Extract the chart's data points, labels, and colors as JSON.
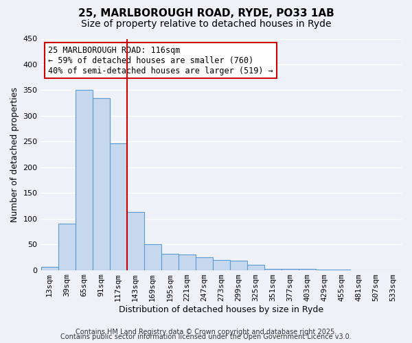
{
  "title1": "25, MARLBOROUGH ROAD, RYDE, PO33 1AB",
  "title2": "Size of property relative to detached houses in Ryde",
  "xlabel": "Distribution of detached houses by size in Ryde",
  "ylabel": "Number of detached properties",
  "bar_values": [
    6,
    90,
    350,
    335,
    247,
    113,
    50,
    32,
    30,
    25,
    20,
    18,
    10,
    2,
    2,
    2,
    1,
    1,
    0,
    0,
    0
  ],
  "categories": [
    "13sqm",
    "39sqm",
    "65sqm",
    "91sqm",
    "117sqm",
    "143sqm",
    "169sqm",
    "195sqm",
    "221sqm",
    "247sqm",
    "273sqm",
    "299sqm",
    "325sqm",
    "351sqm",
    "377sqm",
    "403sqm",
    "429sqm",
    "455sqm",
    "481sqm",
    "507sqm",
    "533sqm"
  ],
  "bar_color": "#c5d8ed",
  "bar_edge_color": "#5b9bd5",
  "ylim": [
    0,
    450
  ],
  "yticks": [
    0,
    50,
    100,
    150,
    200,
    250,
    300,
    350,
    400,
    450
  ],
  "vline_x": 4.5,
  "vline_color": "#cc0000",
  "annotation_title": "25 MARLBOROUGH ROAD: 116sqm",
  "annotation_line1": "← 59% of detached houses are smaller (760)",
  "annotation_line2": "40% of semi-detached houses are larger (519) →",
  "annotation_box_color": "#ffffff",
  "annotation_box_edge": "#cc0000",
  "footer1": "Contains HM Land Registry data © Crown copyright and database right 2025.",
  "footer2": "Contains public sector information licensed under the Open Government Licence v3.0.",
  "bg_color": "#eef2f8",
  "grid_color": "#ffffff",
  "title_fontsize": 11,
  "subtitle_fontsize": 10,
  "axis_label_fontsize": 9,
  "tick_fontsize": 8,
  "annotation_fontsize": 8.5,
  "footer_fontsize": 7
}
